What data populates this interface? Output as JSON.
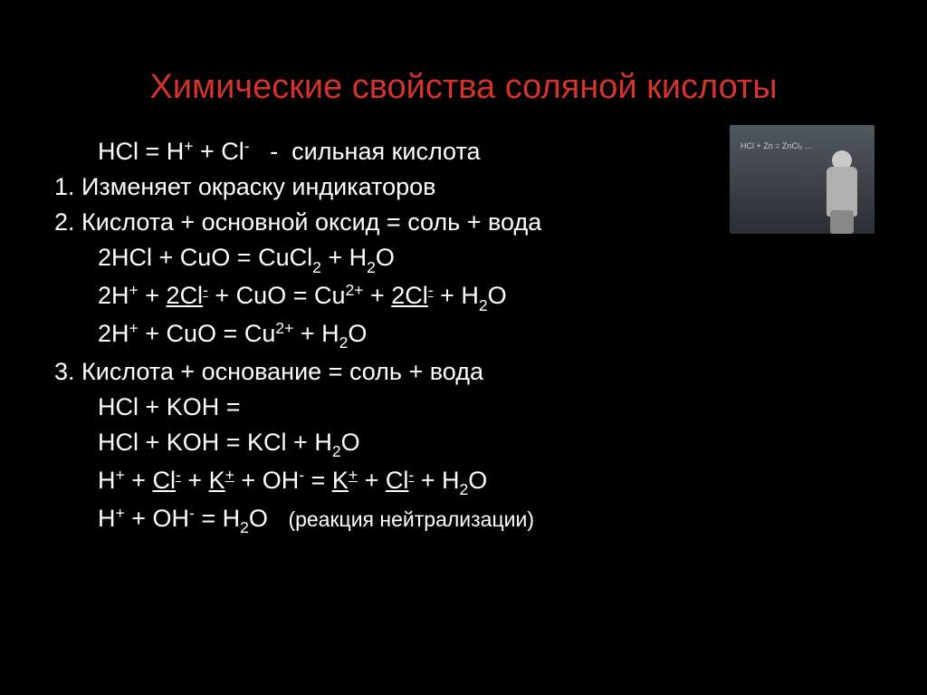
{
  "title": {
    "text": "Химические свойства соляной кислоты",
    "color": "#d4342a"
  },
  "lines": [
    {
      "indent": 1,
      "segments": [
        {
          "t": "HCl = H"
        },
        {
          "t": "+",
          "sup": true
        },
        {
          "t": " + Cl"
        },
        {
          "t": "-",
          "sup": true
        },
        {
          "t": "   -  сильная кислота"
        }
      ]
    },
    {
      "indent": 0,
      "segments": [
        {
          "t": "1. Изменяет окраску индикаторов"
        }
      ]
    },
    {
      "indent": 0,
      "segments": [
        {
          "t": "2. Кислота + основной оксид = соль + вода"
        }
      ]
    },
    {
      "indent": 2,
      "segments": [
        {
          "t": "2HCl + CuO = CuCl"
        },
        {
          "t": "2",
          "sub": true
        },
        {
          "t": " + H"
        },
        {
          "t": "2",
          "sub": true
        },
        {
          "t": "O"
        }
      ]
    },
    {
      "indent": 2,
      "segments": [
        {
          "t": "2H"
        },
        {
          "t": "+",
          "sup": true
        },
        {
          "t": " + "
        },
        {
          "t": "2Cl",
          "ul": true
        },
        {
          "t": "-",
          "sup": true,
          "ul": true
        },
        {
          "t": " + CuO = Cu"
        },
        {
          "t": "2+",
          "sup": true
        },
        {
          "t": " + "
        },
        {
          "t": "2Cl",
          "ul": true
        },
        {
          "t": "-",
          "sup": true,
          "ul": true
        },
        {
          "t": " + H"
        },
        {
          "t": "2",
          "sub": true
        },
        {
          "t": "O"
        }
      ]
    },
    {
      "indent": 2,
      "segments": [
        {
          "t": "2H"
        },
        {
          "t": "+",
          "sup": true
        },
        {
          "t": " + CuO = Cu"
        },
        {
          "t": "2+",
          "sup": true
        },
        {
          "t": " + H"
        },
        {
          "t": "2",
          "sub": true
        },
        {
          "t": "O"
        }
      ]
    },
    {
      "indent": 0,
      "segments": [
        {
          "t": "3. Кислота + основание = соль + вода"
        }
      ]
    },
    {
      "indent": 2,
      "segments": [
        {
          "t": "HCl + KOH ="
        }
      ]
    },
    {
      "indent": 2,
      "segments": [
        {
          "t": "HCl + KOH = KCl + H"
        },
        {
          "t": "2",
          "sub": true
        },
        {
          "t": "O"
        }
      ]
    },
    {
      "indent": 2,
      "segments": [
        {
          "t": "H"
        },
        {
          "t": "+",
          "sup": true
        },
        {
          "t": " + "
        },
        {
          "t": "Cl",
          "ul": true
        },
        {
          "t": "-",
          "sup": true,
          "ul": true
        },
        {
          "t": " + "
        },
        {
          "t": "K",
          "ul": true
        },
        {
          "t": "+",
          "sup": true,
          "ul": true
        },
        {
          "t": " + OH"
        },
        {
          "t": "-",
          "sup": true
        },
        {
          "t": " = "
        },
        {
          "t": "K",
          "ul": true
        },
        {
          "t": "+",
          "sup": true,
          "ul": true
        },
        {
          "t": " + "
        },
        {
          "t": "Cl",
          "ul": true
        },
        {
          "t": "-",
          "sup": true,
          "ul": true
        },
        {
          "t": " + H"
        },
        {
          "t": "2",
          "sub": true
        },
        {
          "t": "O"
        }
      ]
    },
    {
      "indent": 2,
      "segments": [
        {
          "t": "H"
        },
        {
          "t": "+",
          "sup": true
        },
        {
          "t": " + OH"
        },
        {
          "t": "-",
          "sup": true
        },
        {
          "t": " = H"
        },
        {
          "t": "2",
          "sub": true
        },
        {
          "t": "O   "
        },
        {
          "t": "(реакция нейтрализации)",
          "small": true
        }
      ]
    }
  ],
  "body_color": "#ffffff",
  "small_note_fontsize": 23,
  "side_image_formula": "HCl + Zn = ZnCl₂ ..."
}
